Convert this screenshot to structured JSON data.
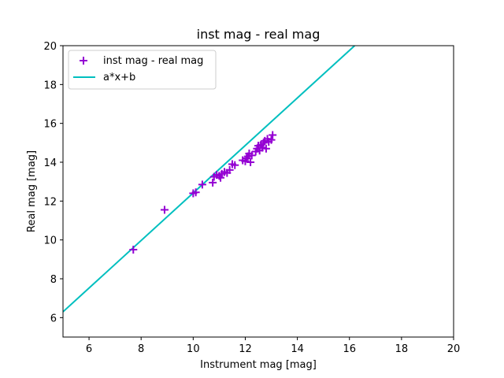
{
  "chart_data": {
    "type": "scatter",
    "title": "inst mag - real mag",
    "xlabel": "Instrument mag [mag]",
    "ylabel": "Real mag [mag]",
    "xlim": [
      5,
      20
    ],
    "ylim": [
      5,
      20
    ],
    "xticks": [
      6,
      8,
      10,
      12,
      14,
      16,
      18,
      20
    ],
    "yticks": [
      6,
      8,
      10,
      12,
      14,
      16,
      18,
      20
    ],
    "grid": false,
    "legend_position": "top-left",
    "colors": {
      "scatter": "#9400d3",
      "fit_line": "#00bfbf",
      "axes": "#000000",
      "legend_border": "#cccccc"
    },
    "series": [
      {
        "name": "inst mag - real mag",
        "kind": "scatter",
        "marker": "+",
        "points": [
          [
            7.7,
            9.5
          ],
          [
            8.9,
            11.55
          ],
          [
            10.0,
            12.4
          ],
          [
            10.1,
            12.45
          ],
          [
            10.35,
            12.85
          ],
          [
            10.75,
            12.95
          ],
          [
            10.8,
            13.25
          ],
          [
            10.9,
            13.35
          ],
          [
            11.0,
            13.3
          ],
          [
            11.05,
            13.2
          ],
          [
            11.1,
            13.4
          ],
          [
            11.2,
            13.5
          ],
          [
            11.3,
            13.45
          ],
          [
            11.4,
            13.6
          ],
          [
            11.5,
            13.9
          ],
          [
            11.6,
            13.85
          ],
          [
            11.9,
            14.1
          ],
          [
            12.0,
            14.05
          ],
          [
            12.05,
            14.2
          ],
          [
            12.1,
            14.3
          ],
          [
            12.15,
            14.45
          ],
          [
            12.2,
            14.0
          ],
          [
            12.25,
            14.35
          ],
          [
            12.4,
            14.55
          ],
          [
            12.45,
            14.7
          ],
          [
            12.5,
            14.85
          ],
          [
            12.55,
            14.6
          ],
          [
            12.6,
            14.9
          ],
          [
            12.65,
            14.75
          ],
          [
            12.7,
            15.0
          ],
          [
            12.75,
            15.1
          ],
          [
            12.8,
            14.7
          ],
          [
            12.85,
            15.2
          ],
          [
            12.9,
            15.05
          ],
          [
            13.0,
            15.15
          ],
          [
            13.05,
            15.4
          ]
        ]
      },
      {
        "name": "a*x+b",
        "kind": "line",
        "x": [
          5,
          16.2
        ],
        "y": [
          6.3,
          20
        ]
      }
    ]
  }
}
